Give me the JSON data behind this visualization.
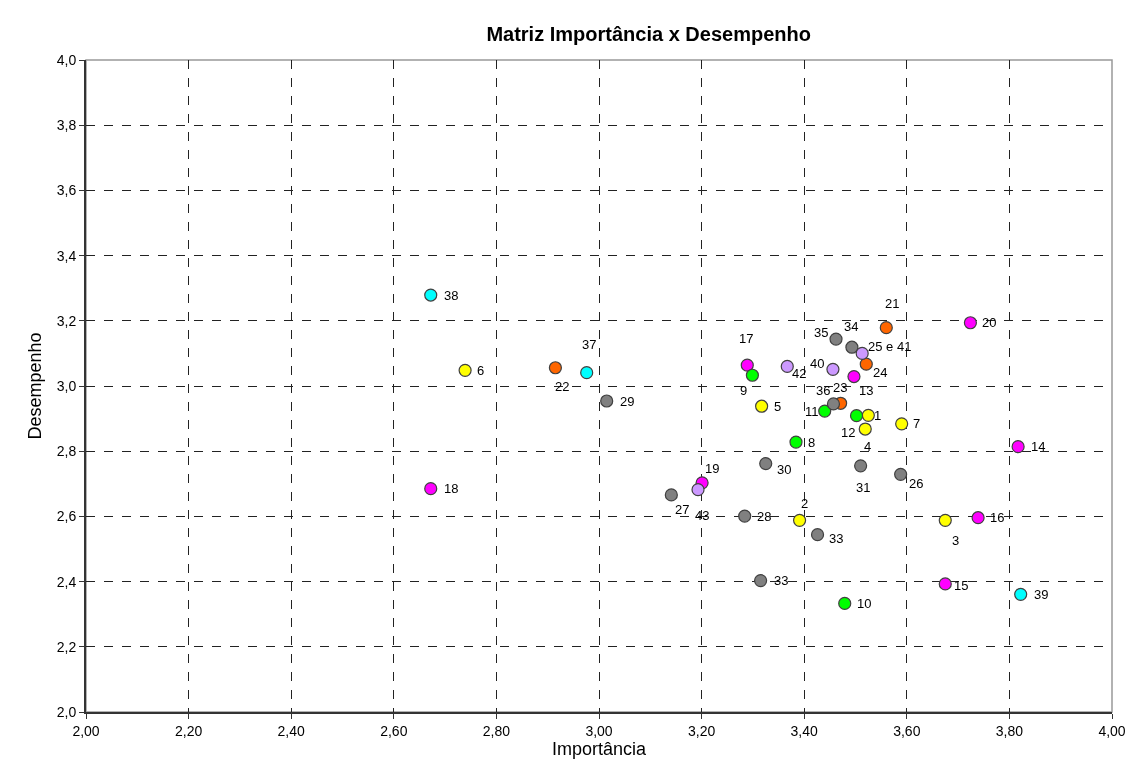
{
  "chart_data": {
    "type": "scatter",
    "title": "Matriz Importância x Desempenho",
    "xlabel": "Importância",
    "ylabel": "Desempenho",
    "xlim": [
      2.0,
      4.0
    ],
    "ylim": [
      2.0,
      4.0
    ],
    "xticks": [
      {
        "value": 2.0,
        "label": "2,00"
      },
      {
        "value": 2.2,
        "label": "2,20"
      },
      {
        "value": 2.4,
        "label": "2,40"
      },
      {
        "value": 2.6,
        "label": "2,60"
      },
      {
        "value": 2.8,
        "label": "2,80"
      },
      {
        "value": 3.0,
        "label": "3,00"
      },
      {
        "value": 3.2,
        "label": "3,20"
      },
      {
        "value": 3.4,
        "label": "3,40"
      },
      {
        "value": 3.6,
        "label": "3,60"
      },
      {
        "value": 3.8,
        "label": "3,80"
      },
      {
        "value": 4.0,
        "label": "4,00"
      }
    ],
    "yticks": [
      {
        "value": 2.0,
        "label": "2,0"
      },
      {
        "value": 2.2,
        "label": "2,2"
      },
      {
        "value": 2.4,
        "label": "2,4"
      },
      {
        "value": 2.6,
        "label": "2,6"
      },
      {
        "value": 2.8,
        "label": "2,8"
      },
      {
        "value": 3.0,
        "label": "3,0"
      },
      {
        "value": 3.2,
        "label": "3,2"
      },
      {
        "value": 3.4,
        "label": "3,4"
      },
      {
        "value": 3.6,
        "label": "3,6"
      },
      {
        "value": 3.8,
        "label": "3,8"
      },
      {
        "value": 4.0,
        "label": "4,0"
      }
    ],
    "grid": true,
    "marker": "circle",
    "series": [
      {
        "color": "#ffff00",
        "x": [
          2.739,
          3.317,
          3.525,
          3.519,
          3.59,
          3.391,
          3.675
        ],
        "values": [
          3.048,
          2.938,
          2.91,
          2.868,
          2.884,
          2.588,
          2.588
        ]
      },
      {
        "color": "#ff00ff",
        "x": [
          2.672,
          3.289,
          3.497,
          3.201,
          3.724,
          3.817,
          3.739,
          3.675
        ],
        "values": [
          2.685,
          3.064,
          3.029,
          2.703,
          3.194,
          2.814,
          2.596,
          2.393
        ]
      },
      {
        "color": "#00ffff",
        "x": [
          2.672,
          2.976,
          3.822
        ],
        "values": [
          3.279,
          3.041,
          2.361
        ]
      },
      {
        "color": "#ff6600",
        "x": [
          2.915,
          3.56,
          3.521,
          3.471
        ],
        "values": [
          3.056,
          3.179,
          3.067,
          2.947
        ]
      },
      {
        "color": "#00ff00",
        "x": [
          3.299,
          3.44,
          3.502,
          3.384,
          3.479
        ],
        "values": [
          3.033,
          2.923,
          2.909,
          2.828,
          2.333
        ]
      },
      {
        "color": "#808080",
        "x": [
          3.015,
          3.141,
          3.462,
          3.493,
          3.457,
          3.51,
          3.588,
          3.325,
          3.284,
          3.426,
          3.315
        ],
        "values": [
          2.954,
          2.666,
          3.144,
          3.119,
          2.945,
          2.755,
          2.729,
          2.762,
          2.601,
          2.544,
          2.403
        ]
      },
      {
        "color": "#cc99ff",
        "x": [
          3.367,
          3.456,
          3.513,
          3.193
        ],
        "values": [
          3.06,
          3.051,
          3.1,
          2.682
        ]
      }
    ],
    "annotations": [
      {
        "text": "38",
        "x": 2.672,
        "y": 3.279
      },
      {
        "text": "6",
        "x": 2.739,
        "y": 3.048
      },
      {
        "text": "22",
        "x": 2.915,
        "y": 3.056
      },
      {
        "text": "37",
        "x": 2.976,
        "y": 3.041
      },
      {
        "text": "29",
        "x": 3.015,
        "y": 2.954
      },
      {
        "text": "18",
        "x": 2.672,
        "y": 2.685
      },
      {
        "text": "27",
        "x": 3.141,
        "y": 2.666
      },
      {
        "text": "43",
        "x": 3.193,
        "y": 2.682
      },
      {
        "text": "28",
        "x": 3.284,
        "y": 2.601
      },
      {
        "text": "2",
        "x": 3.391,
        "y": 2.588
      },
      {
        "text": "33",
        "x": 3.426,
        "y": 2.544
      },
      {
        "text": "33",
        "x": 3.315,
        "y": 2.403
      },
      {
        "text": "10",
        "x": 3.479,
        "y": 2.333
      },
      {
        "text": "31",
        "x": 3.51,
        "y": 2.755
      },
      {
        "text": "26",
        "x": 3.588,
        "y": 2.729
      },
      {
        "text": "3",
        "x": 3.675,
        "y": 2.588
      },
      {
        "text": "16",
        "x": 3.739,
        "y": 2.596
      },
      {
        "text": "15",
        "x": 3.675,
        "y": 2.393
      },
      {
        "text": "39",
        "x": 3.822,
        "y": 2.361
      },
      {
        "text": "14",
        "x": 3.817,
        "y": 2.814
      },
      {
        "text": "20",
        "x": 3.724,
        "y": 3.194
      },
      {
        "text": "21",
        "x": 3.56,
        "y": 3.179
      },
      {
        "text": "35",
        "x": 3.462,
        "y": 3.144
      },
      {
        "text": "34",
        "x": 3.493,
        "y": 3.119
      },
      {
        "text": "25 e 41",
        "x": 3.513,
        "y": 3.1
      },
      {
        "text": "24",
        "x": 3.521,
        "y": 3.067
      },
      {
        "text": "40",
        "x": 3.456,
        "y": 3.051
      },
      {
        "text": "42",
        "x": 3.367,
        "y": 3.06
      },
      {
        "text": "17",
        "x": 3.289,
        "y": 3.064
      },
      {
        "text": "9",
        "x": 3.299,
        "y": 3.033
      },
      {
        "text": "13",
        "x": 3.497,
        "y": 3.029
      },
      {
        "text": "23",
        "x": 3.471,
        "y": 2.947
      },
      {
        "text": "36",
        "x": 3.457,
        "y": 2.945
      },
      {
        "text": "11",
        "x": 3.44,
        "y": 2.923
      },
      {
        "text": "1",
        "x": 3.525,
        "y": 2.91
      },
      {
        "text": "12",
        "x": 3.519,
        "y": 2.868
      },
      {
        "text": "7",
        "x": 3.59,
        "y": 2.884
      },
      {
        "text": "5",
        "x": 3.317,
        "y": 2.938
      },
      {
        "text": "8",
        "x": 3.384,
        "y": 2.828
      },
      {
        "text": "4",
        "x": 3.502,
        "y": 2.909
      },
      {
        "text": "30",
        "x": 3.325,
        "y": 2.762
      },
      {
        "text": "19",
        "x": 3.201,
        "y": 2.703
      }
    ]
  }
}
